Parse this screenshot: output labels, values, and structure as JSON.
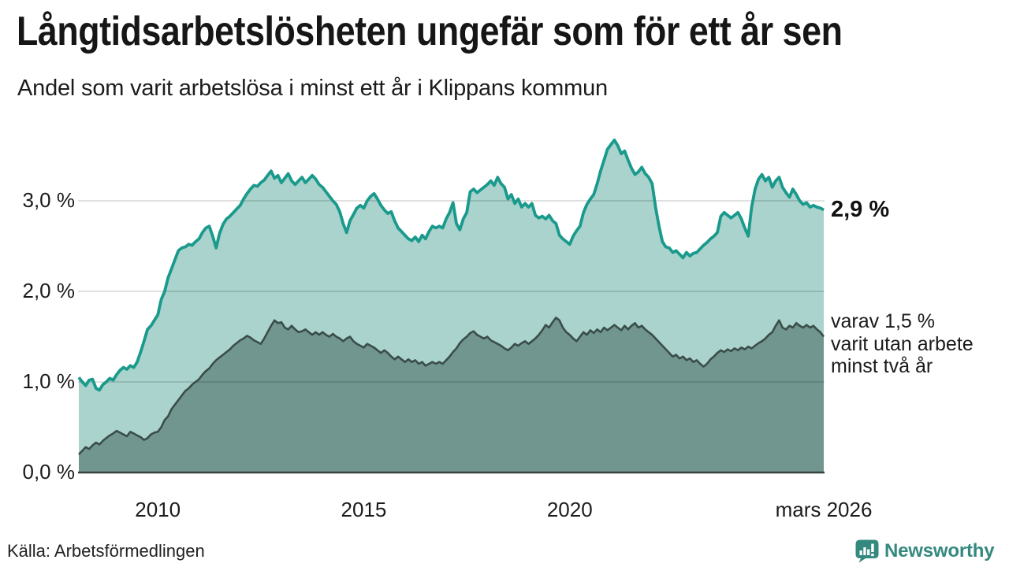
{
  "title": "Långtidsarbetslösheten ungefär som för ett år sen",
  "subtitle": "Andel som varit arbetslösa i minst ett år i Klippans kommun",
  "source": "Källa: Arbetsförmedlingen",
  "logo": {
    "text": "Newsworthy",
    "icon": "newsworthy-chart-bubble-icon"
  },
  "annotations": {
    "end_total": "2,9 %",
    "end_sub_lines": [
      "varav 1,5 %",
      "varit utan arbete",
      "minst två år"
    ]
  },
  "colors": {
    "line_total": "#1a9a8c",
    "fill_total": "#a9d3cc",
    "line_sub": "#3a4d49",
    "fill_sub": "#719690",
    "gridline": "rgba(0,0,0,0.12)",
    "baseline": "#35423f",
    "brand": "#34897f"
  },
  "chart_data": {
    "type": "area",
    "frequency": "monthly",
    "x_start": "2008-02",
    "x_end": "2026-03",
    "ylabel": "",
    "ylim": [
      0,
      3.9
    ],
    "grid": true,
    "y_ticks": [
      {
        "label": "3,0 %",
        "value": 3
      },
      {
        "label": "2,0 %",
        "value": 2
      },
      {
        "label": "1,0 %",
        "value": 1
      },
      {
        "label": "0,0 %",
        "value": 0
      }
    ],
    "x_ticks": [
      {
        "label": "2010",
        "index": 23
      },
      {
        "label": "2015",
        "index": 83
      },
      {
        "label": "2020",
        "index": 143
      },
      {
        "label": "mars 2026",
        "index": 217
      }
    ],
    "series": [
      {
        "name": "varit arbetslösa minst ett år",
        "end_value": 2.9,
        "values": [
          1.05,
          1.0,
          0.96,
          1.02,
          1.03,
          0.93,
          0.91,
          0.97,
          1.0,
          1.04,
          1.02,
          1.08,
          1.13,
          1.16,
          1.14,
          1.18,
          1.16,
          1.22,
          1.33,
          1.45,
          1.58,
          1.62,
          1.68,
          1.74,
          1.91,
          2.0,
          2.15,
          2.25,
          2.35,
          2.45,
          2.48,
          2.49,
          2.52,
          2.51,
          2.55,
          2.58,
          2.65,
          2.7,
          2.72,
          2.61,
          2.48,
          2.64,
          2.74,
          2.8,
          2.83,
          2.87,
          2.91,
          2.95,
          3.02,
          3.08,
          3.13,
          3.17,
          3.16,
          3.2,
          3.23,
          3.28,
          3.33,
          3.25,
          3.28,
          3.2,
          3.25,
          3.3,
          3.22,
          3.18,
          3.22,
          3.26,
          3.2,
          3.24,
          3.28,
          3.24,
          3.18,
          3.15,
          3.1,
          3.05,
          3.0,
          2.96,
          2.88,
          2.75,
          2.65,
          2.78,
          2.85,
          2.92,
          2.95,
          2.92,
          3.0,
          3.05,
          3.08,
          3.02,
          2.95,
          2.9,
          2.86,
          2.88,
          2.78,
          2.7,
          2.66,
          2.62,
          2.58,
          2.56,
          2.6,
          2.55,
          2.62,
          2.58,
          2.66,
          2.72,
          2.7,
          2.72,
          2.7,
          2.8,
          2.87,
          2.98,
          2.75,
          2.68,
          2.8,
          2.87,
          3.1,
          3.13,
          3.09,
          3.12,
          3.15,
          3.18,
          3.22,
          3.17,
          3.26,
          3.19,
          3.15,
          3.02,
          3.07,
          2.97,
          3.02,
          2.93,
          2.97,
          2.93,
          2.97,
          2.84,
          2.81,
          2.83,
          2.8,
          2.84,
          2.78,
          2.75,
          2.62,
          2.58,
          2.55,
          2.52,
          2.61,
          2.67,
          2.72,
          2.87,
          2.96,
          3.02,
          3.07,
          3.19,
          3.33,
          3.45,
          3.57,
          3.62,
          3.67,
          3.61,
          3.52,
          3.55,
          3.45,
          3.36,
          3.29,
          3.32,
          3.37,
          3.3,
          3.26,
          3.19,
          2.93,
          2.72,
          2.55,
          2.49,
          2.48,
          2.43,
          2.45,
          2.41,
          2.37,
          2.43,
          2.39,
          2.42,
          2.43,
          2.47,
          2.51,
          2.54,
          2.58,
          2.61,
          2.65,
          2.83,
          2.87,
          2.84,
          2.81,
          2.84,
          2.87,
          2.8,
          2.7,
          2.61,
          2.93,
          3.13,
          3.24,
          3.29,
          3.22,
          3.26,
          3.15,
          3.22,
          3.26,
          3.15,
          3.09,
          3.04,
          3.13,
          3.07,
          3.0,
          2.96,
          2.98,
          2.93,
          2.95,
          2.93,
          2.92,
          2.9
        ]
      },
      {
        "name": "varit utan arbete minst två år",
        "end_value": 1.5,
        "values": [
          0.2,
          0.24,
          0.28,
          0.26,
          0.3,
          0.33,
          0.31,
          0.35,
          0.38,
          0.41,
          0.43,
          0.46,
          0.44,
          0.42,
          0.4,
          0.45,
          0.43,
          0.41,
          0.39,
          0.36,
          0.38,
          0.42,
          0.44,
          0.45,
          0.5,
          0.58,
          0.62,
          0.7,
          0.75,
          0.8,
          0.85,
          0.9,
          0.93,
          0.97,
          1.0,
          1.03,
          1.08,
          1.12,
          1.15,
          1.2,
          1.24,
          1.27,
          1.3,
          1.33,
          1.36,
          1.4,
          1.43,
          1.46,
          1.48,
          1.51,
          1.49,
          1.46,
          1.44,
          1.42,
          1.48,
          1.55,
          1.62,
          1.68,
          1.65,
          1.66,
          1.6,
          1.58,
          1.62,
          1.58,
          1.55,
          1.56,
          1.58,
          1.55,
          1.52,
          1.55,
          1.52,
          1.55,
          1.52,
          1.5,
          1.53,
          1.5,
          1.48,
          1.45,
          1.48,
          1.5,
          1.45,
          1.42,
          1.4,
          1.38,
          1.42,
          1.4,
          1.38,
          1.35,
          1.32,
          1.35,
          1.32,
          1.28,
          1.25,
          1.28,
          1.25,
          1.22,
          1.25,
          1.22,
          1.24,
          1.2,
          1.22,
          1.18,
          1.2,
          1.22,
          1.2,
          1.22,
          1.2,
          1.24,
          1.28,
          1.33,
          1.37,
          1.43,
          1.47,
          1.5,
          1.54,
          1.56,
          1.52,
          1.5,
          1.48,
          1.5,
          1.46,
          1.44,
          1.42,
          1.4,
          1.37,
          1.35,
          1.38,
          1.42,
          1.4,
          1.43,
          1.45,
          1.42,
          1.45,
          1.48,
          1.52,
          1.57,
          1.63,
          1.6,
          1.66,
          1.71,
          1.68,
          1.6,
          1.55,
          1.52,
          1.48,
          1.45,
          1.5,
          1.55,
          1.52,
          1.57,
          1.54,
          1.58,
          1.55,
          1.6,
          1.57,
          1.6,
          1.63,
          1.6,
          1.57,
          1.62,
          1.58,
          1.62,
          1.65,
          1.6,
          1.62,
          1.58,
          1.55,
          1.52,
          1.48,
          1.44,
          1.4,
          1.36,
          1.32,
          1.28,
          1.3,
          1.26,
          1.28,
          1.24,
          1.26,
          1.22,
          1.24,
          1.2,
          1.17,
          1.2,
          1.25,
          1.28,
          1.32,
          1.35,
          1.33,
          1.36,
          1.34,
          1.37,
          1.35,
          1.38,
          1.36,
          1.39,
          1.37,
          1.4,
          1.43,
          1.45,
          1.48,
          1.52,
          1.55,
          1.62,
          1.68,
          1.6,
          1.58,
          1.62,
          1.6,
          1.65,
          1.62,
          1.6,
          1.63,
          1.6,
          1.62,
          1.58,
          1.55,
          1.5
        ]
      }
    ]
  }
}
